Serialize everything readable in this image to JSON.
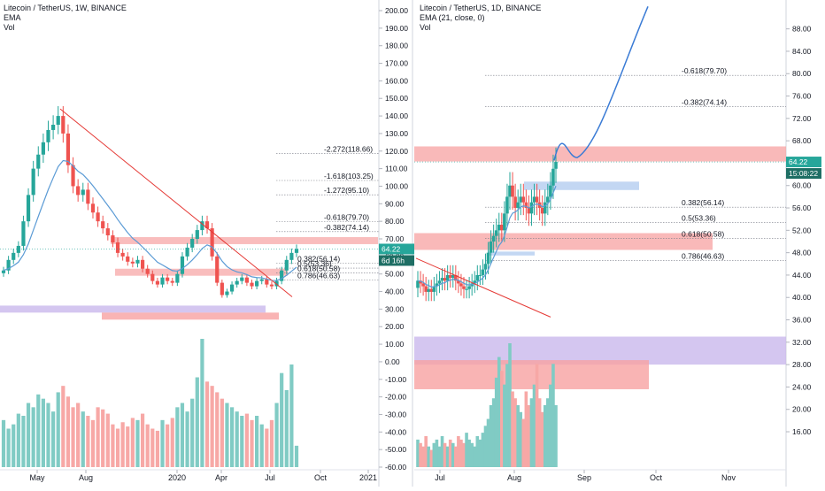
{
  "colors": {
    "up": "#26a69a",
    "down": "#ef5350",
    "vol_up": "#80cbc4",
    "vol_down": "#f7a8a6",
    "ema": "#5b9bd5",
    "trend": "#e53935",
    "zone_red": "#f7a1a1",
    "zone_purple": "#c9b8ec",
    "zone_blue": "#bcd3f2",
    "last_price": "#26a69a",
    "grid_text": "#131722"
  },
  "chart_data": [
    {
      "type": "candlestick",
      "title": "Litecoin / TetherUS, 1W, BINANCE",
      "indicators": [
        "EMA",
        "Vol"
      ],
      "ylim": [
        -60,
        200
      ],
      "y_ticks": [
        "200.00",
        "190.00",
        "180.00",
        "170.00",
        "160.00",
        "150.00",
        "140.00",
        "130.00",
        "120.00",
        "110.00",
        "100.00",
        "90.00",
        "80.00",
        "70.00",
        "60.00",
        "50.00",
        "40.00",
        "30.00",
        "20.00",
        "10.00",
        "0.00",
        "-10.00",
        "-20.00",
        "-30.00",
        "-40.00",
        "-50.00",
        "-60.00"
      ],
      "x_ticks": [
        "May",
        "Aug",
        "2020",
        "Apr",
        "Jul",
        "Oct",
        "2021"
      ],
      "last_price": "64.22",
      "countdown": "6d 16h",
      "fib_levels": [
        {
          "label": "-2.272(118.66)",
          "value": 118.66
        },
        {
          "label": "-1.618(103.25)",
          "value": 103.25
        },
        {
          "label": "-1.272(95.10)",
          "value": 95.1
        },
        {
          "label": "-0.618(79.70)",
          "value": 79.7
        },
        {
          "label": "-0.382(74.14)",
          "value": 74.14
        },
        {
          "label": "0.382(56.14)",
          "value": 56.14
        },
        {
          "label": "0.5(53.36)",
          "value": 53.36
        },
        {
          "label": "0.618(50.58)",
          "value": 50.58
        },
        {
          "label": "0.786(46.63)",
          "value": 46.63
        }
      ],
      "close": [
        52,
        58,
        62,
        66,
        80,
        95,
        110,
        118,
        125,
        132,
        135,
        140,
        130,
        112,
        100,
        95,
        98,
        90,
        85,
        80,
        76,
        72,
        68,
        62,
        60,
        57,
        56,
        58,
        53,
        50,
        46,
        44,
        48,
        46,
        45,
        50,
        60,
        65,
        70,
        75,
        80,
        76,
        60,
        45,
        38,
        40,
        44,
        46,
        48,
        45,
        43,
        46,
        47,
        44,
        43,
        46,
        52,
        58,
        62,
        64.22
      ],
      "volume": [
        22,
        18,
        20,
        25,
        24,
        30,
        28,
        34,
        32,
        30,
        26,
        35,
        38,
        33,
        28,
        30,
        26,
        24,
        22,
        28,
        27,
        25,
        20,
        18,
        21,
        19,
        23,
        22,
        25,
        20,
        18,
        17,
        22,
        20,
        23,
        28,
        30,
        26,
        32,
        42,
        60,
        40,
        38,
        35,
        32,
        30,
        28,
        26,
        24,
        25,
        22,
        24,
        20,
        18,
        22,
        30,
        44,
        36,
        48,
        10
      ]
    },
    {
      "type": "candlestick",
      "title": "Litecoin / TetherUS, 1D, BINANCE",
      "indicators": [
        "EMA (21, close, 0)",
        "Vol"
      ],
      "ylim": [
        13,
        90
      ],
      "y_ticks": [
        "88.00",
        "84.00",
        "80.00",
        "76.00",
        "72.00",
        "68.00",
        "64.00",
        "60.00",
        "56.00",
        "52.00",
        "48.00",
        "44.00",
        "40.00",
        "36.00",
        "32.00",
        "28.00",
        "24.00",
        "20.00",
        "16.00"
      ],
      "x_ticks": [
        "Jul",
        "Aug",
        "Sep",
        "Oct",
        "Nov"
      ],
      "last_price": "64.22",
      "countdown": "15:08:22",
      "fib_levels": [
        {
          "label": "-0.618(79.70)",
          "value": 79.7
        },
        {
          "label": "-0.382(74.14)",
          "value": 74.14
        },
        {
          "label": "0.382(56.14)",
          "value": 56.14
        },
        {
          "label": "0.5(53.36)",
          "value": 53.36
        },
        {
          "label": "0.618(50.58)",
          "value": 50.58
        },
        {
          "label": "0.786(46.63)",
          "value": 46.63
        }
      ],
      "close": [
        43,
        42.5,
        42,
        41,
        41.5,
        41,
        42,
        42.5,
        43,
        43.5,
        43,
        44,
        43.5,
        44,
        43,
        42.5,
        42,
        41.5,
        41.5,
        42,
        42.5,
        43,
        44,
        44,
        45,
        46,
        48,
        50,
        51,
        52,
        53,
        52,
        55,
        58,
        60,
        58,
        56,
        57,
        58,
        57,
        56,
        55,
        57,
        58,
        57,
        56,
        55,
        57,
        58,
        60,
        63,
        64.22
      ],
      "volume": [
        8,
        7,
        6,
        9,
        6,
        5,
        7,
        8,
        6,
        9,
        7,
        6,
        8,
        7,
        6,
        9,
        8,
        7,
        10,
        8,
        7,
        6,
        9,
        8,
        10,
        12,
        14,
        18,
        20,
        26,
        32,
        28,
        24,
        30,
        36,
        22,
        20,
        18,
        16,
        14,
        22,
        18,
        20,
        24,
        30,
        20,
        16,
        18,
        20,
        24,
        30,
        18
      ],
      "projection_note_free": true
    }
  ]
}
